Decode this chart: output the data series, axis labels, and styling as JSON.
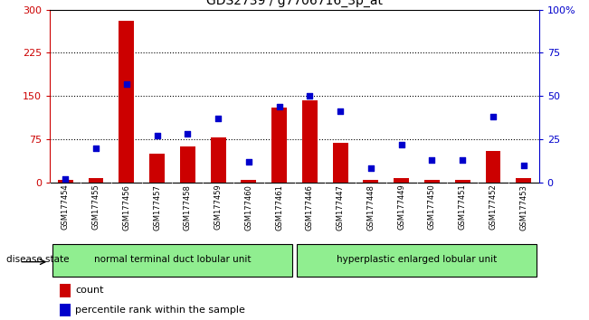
{
  "title": "GDS2739 / g7706716_3p_at",
  "samples": [
    "GSM177454",
    "GSM177455",
    "GSM177456",
    "GSM177457",
    "GSM177458",
    "GSM177459",
    "GSM177460",
    "GSM177461",
    "GSM177446",
    "GSM177447",
    "GSM177448",
    "GSM177449",
    "GSM177450",
    "GSM177451",
    "GSM177452",
    "GSM177453"
  ],
  "counts": [
    5,
    8,
    280,
    50,
    62,
    78,
    5,
    130,
    142,
    68,
    5,
    7,
    5,
    5,
    55,
    8
  ],
  "percentiles": [
    2,
    20,
    57,
    27,
    28,
    37,
    12,
    44,
    50,
    41,
    8,
    22,
    13,
    13,
    38,
    10
  ],
  "groups": [
    {
      "label": "normal terminal duct lobular unit",
      "start": 0,
      "end": 8
    },
    {
      "label": "hyperplastic enlarged lobular unit",
      "start": 8,
      "end": 16
    }
  ],
  "group_divider": 8,
  "bar_color": "#cc0000",
  "dot_color": "#0000cc",
  "ylim_left": [
    0,
    300
  ],
  "ylim_right": [
    0,
    100
  ],
  "yticks_left": [
    0,
    75,
    150,
    225,
    300
  ],
  "yticks_right": [
    0,
    25,
    50,
    75,
    100
  ],
  "yticklabels_right": [
    "0",
    "25",
    "50",
    "75",
    "100%"
  ],
  "grid_values": [
    75,
    150,
    225
  ],
  "left_axis_color": "#cc0000",
  "right_axis_color": "#0000cc",
  "disease_state_label": "disease state",
  "legend_count_label": "count",
  "legend_percentile_label": "percentile rank within the sample",
  "bg_plot": "#ffffff",
  "bg_xtick": "#c8c8c8",
  "bg_group": "#90ee90",
  "title_fontsize": 10,
  "bar_width": 0.5
}
